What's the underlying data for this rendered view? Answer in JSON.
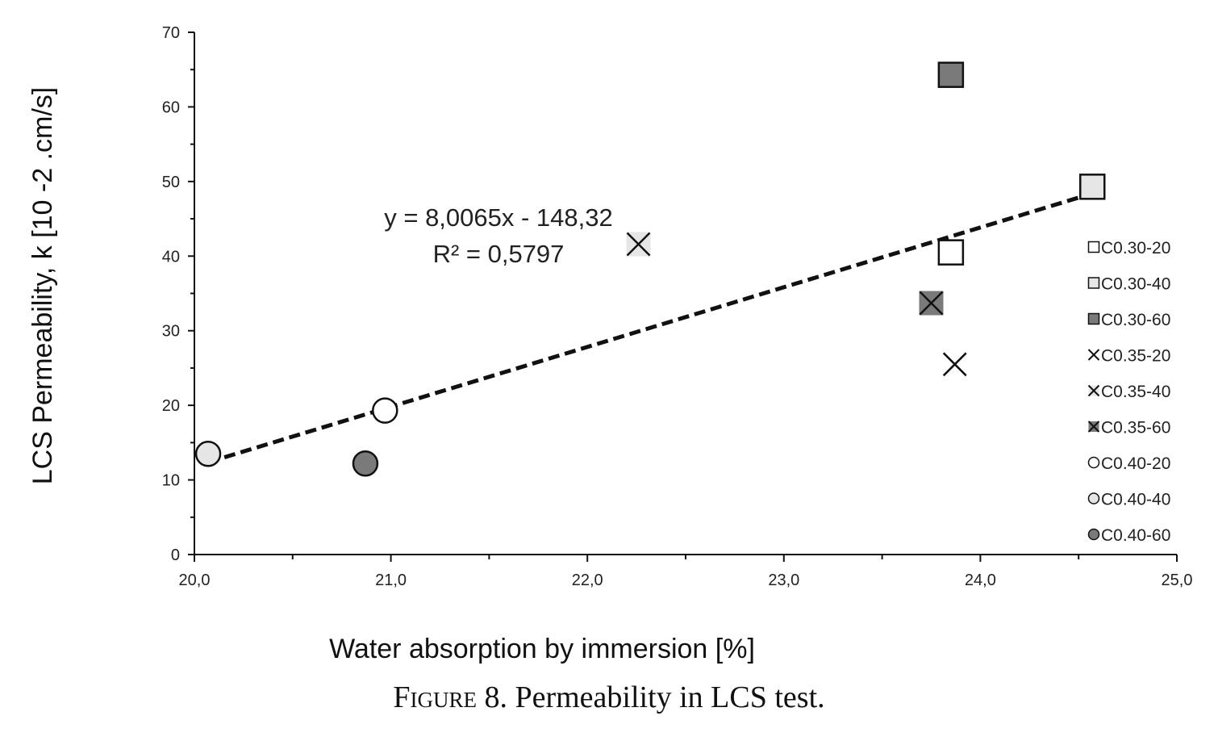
{
  "chart_data": {
    "type": "scatter",
    "xlabel": "Water absorption by immersion [%]",
    "ylabel": "LCS Permeability, k [10 -2 .cm/s]",
    "xlim": [
      20.0,
      25.0
    ],
    "ylim": [
      0,
      70
    ],
    "x_ticks": [
      "20,0",
      "21,0",
      "22,0",
      "23,0",
      "24,0",
      "25,0"
    ],
    "y_ticks": [
      "0",
      "10",
      "20",
      "30",
      "40",
      "50",
      "60",
      "70"
    ],
    "grid": false,
    "legend_position": "right",
    "series": [
      {
        "name": "C0.30-20",
        "marker": "square",
        "fill": "#ffffff",
        "points": [
          [
            23.85,
            40.5
          ]
        ]
      },
      {
        "name": "C0.30-40",
        "marker": "square",
        "fill": "#e6e6e6",
        "points": [
          [
            24.57,
            49.3
          ]
        ]
      },
      {
        "name": "C0.30-60",
        "marker": "square",
        "fill": "#7a7a7a",
        "points": [
          [
            23.85,
            64.3
          ]
        ]
      },
      {
        "name": "C0.35-20",
        "marker": "cross",
        "fill": "#ffffff",
        "points": [
          [
            23.87,
            25.5
          ]
        ]
      },
      {
        "name": "C0.35-40",
        "marker": "cross",
        "fill": "#e6e6e6",
        "points": [
          [
            22.26,
            41.6
          ]
        ]
      },
      {
        "name": "C0.35-60",
        "marker": "cross",
        "fill": "#7a7a7a",
        "points": [
          [
            23.75,
            33.7
          ]
        ]
      },
      {
        "name": "C0.40-20",
        "marker": "circle",
        "fill": "#ffffff",
        "points": [
          [
            20.97,
            19.3
          ]
        ]
      },
      {
        "name": "C0.40-40",
        "marker": "circle",
        "fill": "#e6e6e6",
        "points": [
          [
            20.07,
            13.5
          ]
        ]
      },
      {
        "name": "C0.40-60",
        "marker": "circle",
        "fill": "#7a7a7a",
        "points": [
          [
            20.87,
            12.2
          ]
        ]
      }
    ],
    "trendline": {
      "slope": 8.0065,
      "intercept": -148.32,
      "x_range": [
        20.07,
        24.57
      ],
      "equation": "y = 8,0065x - 148,32",
      "r2": "R² = 0,5797"
    }
  },
  "caption": {
    "prefix": "Figure",
    "text": " 8. Permeability in LCS test."
  }
}
